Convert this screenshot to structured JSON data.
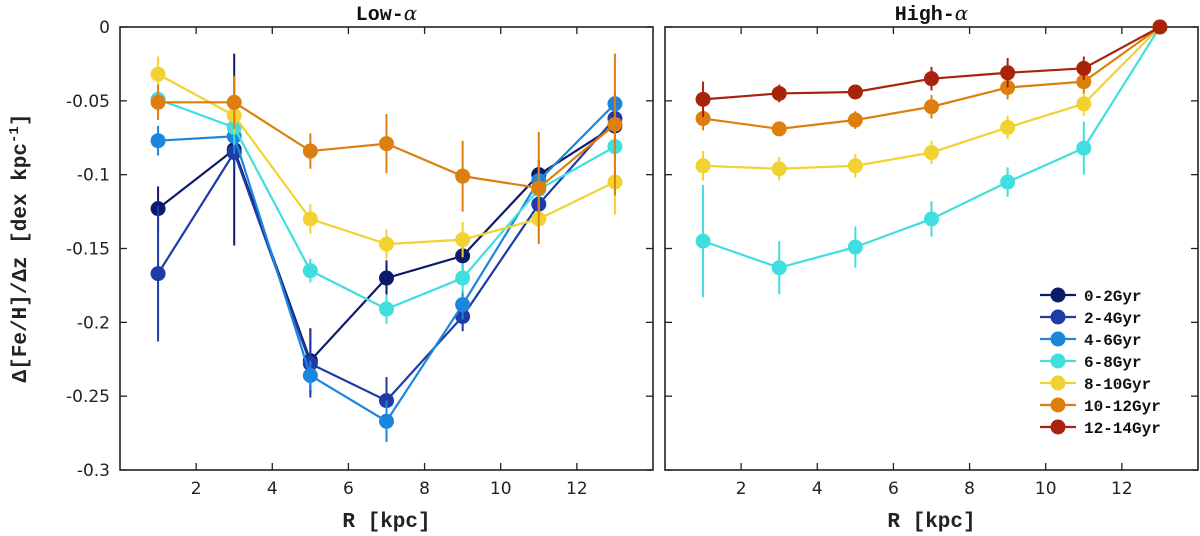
{
  "chart_data": {
    "type": "line",
    "ylabel": "Δ[Fe/H]/Δz [dex kpc",
    "ylabel_exponent": "-1",
    "xlabel": "R [kpc]",
    "ylim": [
      -0.3,
      0
    ],
    "yticks": [
      0,
      -0.05,
      -0.1,
      -0.15,
      -0.2,
      -0.25,
      -0.3
    ],
    "ytick_labels": [
      "0",
      "-0.05",
      "-0.1",
      "-0.15",
      "-0.2",
      "-0.25",
      "-0.3"
    ],
    "xticks": [
      2,
      4,
      6,
      8,
      10,
      12
    ],
    "xtick_labels": [
      "2",
      "4",
      "6",
      "8",
      "10",
      "12"
    ],
    "legend_location": "lower-right",
    "panels": [
      {
        "title": "Low-",
        "title_symbol": "α",
        "xlim": [
          0,
          14
        ],
        "series": [
          {
            "name": "0-2Gyr",
            "color": "#0d1a6b",
            "x": [
              1,
              3,
              5,
              7,
              9,
              11,
              13
            ],
            "y": [
              -0.123,
              -0.083,
              -0.226,
              -0.17,
              -0.155,
              -0.1,
              -0.067
            ],
            "err": [
              0.015,
              0.065,
              0.022,
              0.012,
              0.01,
              0.01,
              0.01
            ]
          },
          {
            "name": "2-4Gyr",
            "color": "#1e3ba6",
            "x": [
              1,
              3,
              5,
              7,
              9,
              11,
              13
            ],
            "y": [
              -0.167,
              -0.085,
              -0.228,
              -0.253,
              -0.196,
              -0.12,
              -0.062
            ],
            "err": [
              0.046,
              0.01,
              0.023,
              0.016,
              0.01,
              0.01,
              0.01
            ]
          },
          {
            "name": "4-6Gyr",
            "color": "#1c86dc",
            "x": [
              1,
              3,
              5,
              7,
              9,
              11,
              13
            ],
            "y": [
              -0.077,
              -0.074,
              -0.236,
              -0.267,
              -0.188,
              -0.104,
              -0.052
            ],
            "err": [
              0.01,
              0.012,
              0.01,
              0.014,
              0.01,
              0.01,
              0.008
            ]
          },
          {
            "name": "6-8Gyr",
            "color": "#40dede",
            "x": [
              1,
              3,
              5,
              7,
              9,
              11,
              13
            ],
            "y": [
              -0.049,
              -0.068,
              -0.165,
              -0.191,
              -0.17,
              -0.11,
              -0.081
            ],
            "err": [
              0.01,
              0.012,
              0.008,
              0.01,
              0.01,
              0.01,
              0.01
            ]
          },
          {
            "name": "8-10Gyr",
            "color": "#f2d231",
            "x": [
              1,
              3,
              5,
              7,
              9,
              11,
              13
            ],
            "y": [
              -0.032,
              -0.06,
              -0.13,
              -0.147,
              -0.144,
              -0.13,
              -0.105
            ],
            "err": [
              0.012,
              0.012,
              0.01,
              0.01,
              0.012,
              0.012,
              0.022
            ]
          },
          {
            "name": "10-12Gyr",
            "color": "#dd7f0e",
            "x": [
              1,
              3,
              5,
              7,
              9,
              11,
              13
            ],
            "y": [
              -0.051,
              -0.051,
              -0.084,
              -0.079,
              -0.101,
              -0.109,
              -0.066
            ],
            "err": [
              0.012,
              0.018,
              0.012,
              0.02,
              0.024,
              0.038,
              0.048
            ]
          }
        ]
      },
      {
        "title": "High-",
        "title_symbol": "α",
        "xlim": [
          0,
          14
        ],
        "series": [
          {
            "name": "6-8Gyr",
            "color": "#40dede",
            "x": [
              1,
              3,
              5,
              7,
              9,
              11,
              13
            ],
            "y": [
              -0.145,
              -0.163,
              -0.149,
              -0.13,
              -0.105,
              -0.082,
              0
            ],
            "err": [
              0.038,
              0.018,
              0.014,
              0.012,
              0.01,
              0.018,
              0.003
            ]
          },
          {
            "name": "8-10Gyr",
            "color": "#f2d231",
            "x": [
              1,
              3,
              5,
              7,
              9,
              11,
              13
            ],
            "y": [
              -0.094,
              -0.096,
              -0.094,
              -0.085,
              -0.068,
              -0.052,
              0
            ],
            "err": [
              0.01,
              0.008,
              0.008,
              0.008,
              0.008,
              0.008,
              0.003
            ]
          },
          {
            "name": "10-12Gyr",
            "color": "#dd7f0e",
            "x": [
              1,
              3,
              5,
              7,
              9,
              11,
              13
            ],
            "y": [
              -0.062,
              -0.069,
              -0.063,
              -0.054,
              -0.041,
              -0.037,
              0
            ],
            "err": [
              0.008,
              0.004,
              0.006,
              0.008,
              0.008,
              0.008,
              0.003
            ]
          },
          {
            "name": "12-14Gyr",
            "color": "#a8230c",
            "x": [
              1,
              3,
              5,
              7,
              9,
              11,
              13
            ],
            "y": [
              -0.049,
              -0.045,
              -0.044,
              -0.035,
              -0.031,
              -0.028,
              0
            ],
            "err": [
              0.012,
              0.006,
              0.004,
              0.008,
              0.01,
              0.008,
              0.003
            ]
          }
        ]
      }
    ],
    "legend": [
      {
        "label": "0-2Gyr",
        "color": "#0d1a6b"
      },
      {
        "label": "2-4Gyr",
        "color": "#1e3ba6"
      },
      {
        "label": "4-6Gyr",
        "color": "#1c86dc"
      },
      {
        "label": "6-8Gyr",
        "color": "#40dede"
      },
      {
        "label": "8-10Gyr",
        "color": "#f2d231"
      },
      {
        "label": "10-12Gyr",
        "color": "#dd7f0e"
      },
      {
        "label": "12-14Gyr",
        "color": "#a8230c"
      }
    ]
  }
}
